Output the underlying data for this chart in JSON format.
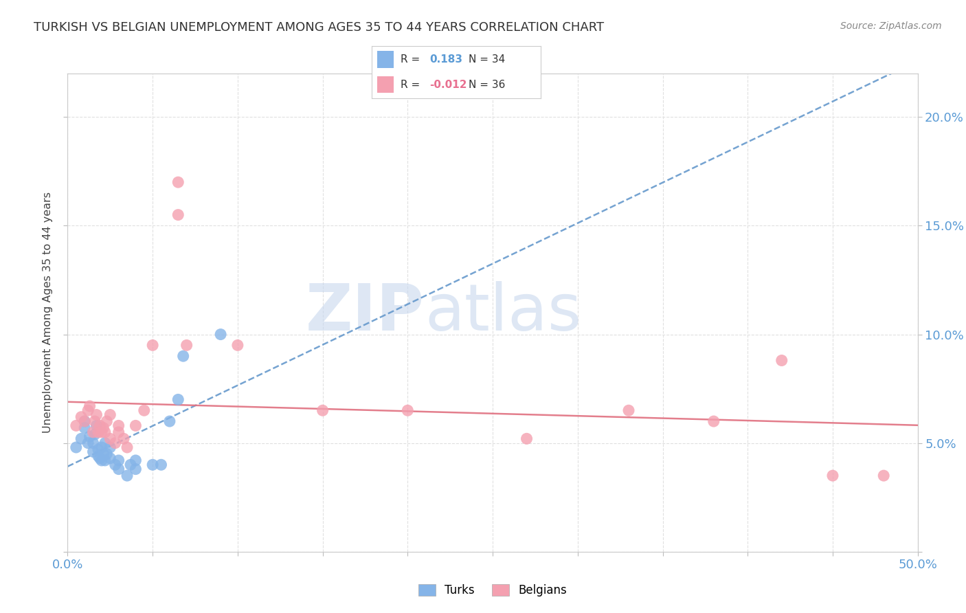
{
  "title": "TURKISH VS BELGIAN UNEMPLOYMENT AMONG AGES 35 TO 44 YEARS CORRELATION CHART",
  "source": "Source: ZipAtlas.com",
  "ylabel": "Unemployment Among Ages 35 to 44 years",
  "xlim": [
    0.0,
    0.5
  ],
  "ylim": [
    0.0,
    0.22
  ],
  "x_ticks": [
    0.0,
    0.05,
    0.1,
    0.15,
    0.2,
    0.25,
    0.3,
    0.35,
    0.4,
    0.45,
    0.5
  ],
  "y_ticks": [
    0.0,
    0.05,
    0.1,
    0.15,
    0.2
  ],
  "turks_R": "0.183",
  "turks_N": "34",
  "belgians_R": "-0.012",
  "belgians_N": "36",
  "turks_color": "#85b4e8",
  "belgians_color": "#f4a0b0",
  "trend_blue": "#6699cc",
  "trend_pink": "#e07080",
  "turks_x": [
    0.005,
    0.008,
    0.01,
    0.01,
    0.012,
    0.013,
    0.015,
    0.015,
    0.016,
    0.017,
    0.018,
    0.018,
    0.019,
    0.02,
    0.02,
    0.021,
    0.022,
    0.022,
    0.023,
    0.025,
    0.025,
    0.028,
    0.03,
    0.03,
    0.035,
    0.037,
    0.04,
    0.04,
    0.05,
    0.055,
    0.06,
    0.065,
    0.068,
    0.09
  ],
  "turks_y": [
    0.048,
    0.052,
    0.057,
    0.06,
    0.05,
    0.053,
    0.046,
    0.05,
    0.054,
    0.058,
    0.044,
    0.047,
    0.043,
    0.042,
    0.048,
    0.045,
    0.042,
    0.05,
    0.045,
    0.043,
    0.048,
    0.04,
    0.038,
    0.042,
    0.035,
    0.04,
    0.038,
    0.042,
    0.04,
    0.04,
    0.06,
    0.07,
    0.09,
    0.1
  ],
  "belgians_x": [
    0.005,
    0.008,
    0.01,
    0.012,
    0.013,
    0.015,
    0.016,
    0.017,
    0.018,
    0.019,
    0.02,
    0.021,
    0.022,
    0.023,
    0.025,
    0.025,
    0.028,
    0.03,
    0.03,
    0.033,
    0.035,
    0.04,
    0.045,
    0.05,
    0.065,
    0.065,
    0.07,
    0.1,
    0.15,
    0.2,
    0.27,
    0.33,
    0.38,
    0.42,
    0.45,
    0.48
  ],
  "belgians_y": [
    0.058,
    0.062,
    0.06,
    0.065,
    0.067,
    0.055,
    0.06,
    0.063,
    0.055,
    0.058,
    0.055,
    0.057,
    0.055,
    0.06,
    0.052,
    0.063,
    0.05,
    0.055,
    0.058,
    0.052,
    0.048,
    0.058,
    0.065,
    0.095,
    0.17,
    0.155,
    0.095,
    0.095,
    0.065,
    0.065,
    0.052,
    0.065,
    0.06,
    0.088,
    0.035,
    0.035
  ],
  "watermark_ZIP": "ZIP",
  "watermark_atlas": "atlas",
  "background_color": "#ffffff",
  "grid_color": "#e0e0e0"
}
